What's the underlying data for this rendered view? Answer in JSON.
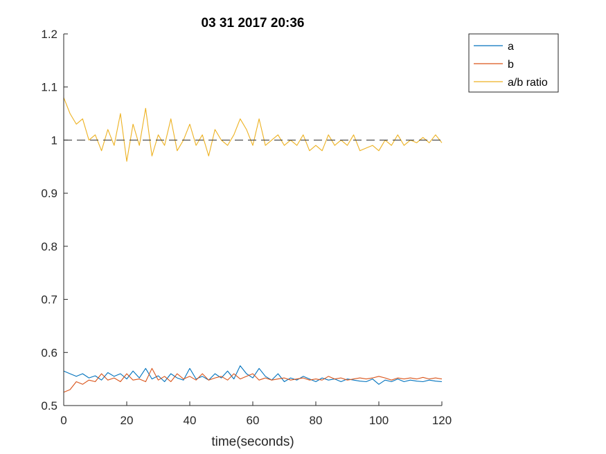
{
  "chart_data": {
    "type": "line",
    "title": "03 31 2017 20:36",
    "xlabel": "time(seconds)",
    "ylabel": "",
    "xlim": [
      0,
      120
    ],
    "ylim": [
      0.5,
      1.2
    ],
    "x_ticks": [
      "0",
      "20",
      "40",
      "60",
      "80",
      "100",
      "120"
    ],
    "y_ticks": [
      "0.5",
      "0.6",
      "0.7",
      "0.8",
      "0.9",
      "1",
      "1.1",
      "1.2"
    ],
    "grid": false,
    "legend_position": "outside top-right",
    "reference_line": {
      "y": 1.0,
      "style": "dashed",
      "color": "#404040"
    },
    "x": [
      0,
      2,
      4,
      6,
      8,
      10,
      12,
      14,
      16,
      18,
      20,
      22,
      24,
      26,
      28,
      30,
      32,
      34,
      36,
      38,
      40,
      42,
      44,
      46,
      48,
      50,
      52,
      54,
      56,
      58,
      60,
      62,
      64,
      66,
      68,
      70,
      72,
      74,
      76,
      78,
      80,
      82,
      84,
      86,
      88,
      90,
      92,
      94,
      96,
      98,
      100,
      102,
      104,
      106,
      108,
      110,
      112,
      114,
      116,
      118,
      120
    ],
    "series": [
      {
        "name": "a",
        "color": "#0072BD",
        "values": [
          0.565,
          0.56,
          0.555,
          0.56,
          0.552,
          0.556,
          0.548,
          0.562,
          0.555,
          0.56,
          0.55,
          0.565,
          0.552,
          0.57,
          0.55,
          0.556,
          0.545,
          0.56,
          0.552,
          0.548,
          0.57,
          0.55,
          0.555,
          0.548,
          0.56,
          0.552,
          0.565,
          0.55,
          0.575,
          0.56,
          0.552,
          0.57,
          0.555,
          0.548,
          0.56,
          0.545,
          0.552,
          0.548,
          0.555,
          0.55,
          0.545,
          0.552,
          0.548,
          0.55,
          0.545,
          0.55,
          0.548,
          0.546,
          0.545,
          0.55,
          0.54,
          0.548,
          0.545,
          0.55,
          0.545,
          0.548,
          0.546,
          0.545,
          0.548,
          0.546,
          0.545
        ]
      },
      {
        "name": "b",
        "color": "#D95319",
        "values": [
          0.525,
          0.53,
          0.545,
          0.54,
          0.548,
          0.545,
          0.56,
          0.548,
          0.552,
          0.545,
          0.56,
          0.548,
          0.55,
          0.545,
          0.57,
          0.548,
          0.555,
          0.545,
          0.56,
          0.55,
          0.555,
          0.548,
          0.56,
          0.548,
          0.552,
          0.555,
          0.548,
          0.56,
          0.55,
          0.555,
          0.56,
          0.548,
          0.552,
          0.548,
          0.55,
          0.552,
          0.548,
          0.55,
          0.552,
          0.548,
          0.55,
          0.548,
          0.555,
          0.55,
          0.552,
          0.548,
          0.55,
          0.552,
          0.55,
          0.552,
          0.555,
          0.552,
          0.548,
          0.552,
          0.55,
          0.552,
          0.55,
          0.553,
          0.55,
          0.552,
          0.55
        ]
      },
      {
        "name": "a/b ratio",
        "color": "#EDB120",
        "values": [
          1.08,
          1.05,
          1.03,
          1.04,
          1.0,
          1.01,
          0.98,
          1.02,
          0.99,
          1.05,
          0.96,
          1.03,
          0.99,
          1.06,
          0.97,
          1.01,
          0.99,
          1.04,
          0.98,
          1.0,
          1.03,
          0.99,
          1.01,
          0.97,
          1.02,
          1.0,
          0.99,
          1.01,
          1.04,
          1.02,
          0.99,
          1.04,
          0.99,
          1.0,
          1.01,
          0.99,
          1.0,
          0.99,
          1.01,
          0.98,
          0.99,
          0.98,
          1.01,
          0.99,
          1.0,
          0.99,
          1.01,
          0.98,
          0.985,
          0.99,
          0.98,
          1.0,
          0.99,
          1.01,
          0.99,
          1.0,
          0.995,
          1.005,
          0.995,
          1.01,
          0.995
        ]
      }
    ]
  }
}
